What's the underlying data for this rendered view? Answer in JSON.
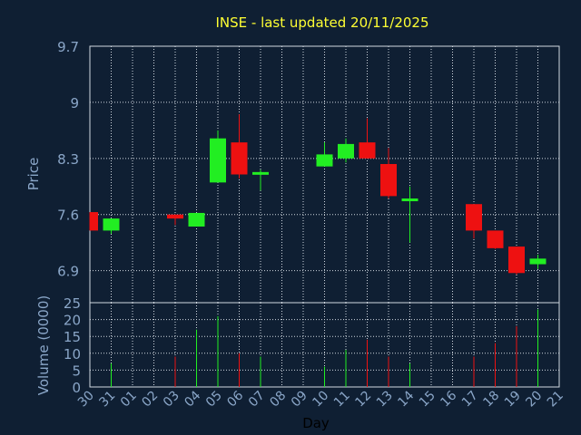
{
  "chart_data": {
    "type": "candlestick",
    "title": "INSE - last updated 20/11/2025",
    "xlabel": "Day",
    "days": [
      "30",
      "31",
      "01",
      "02",
      "03",
      "04",
      "05",
      "06",
      "07",
      "08",
      "09",
      "10",
      "11",
      "12",
      "13",
      "14",
      "15",
      "16",
      "17",
      "18",
      "19",
      "20",
      "21"
    ],
    "price_panel": {
      "ylabel": "Price",
      "ylim": [
        6.5,
        9.7
      ],
      "yticks": [
        "9.7",
        "9",
        "8.3",
        "7.6",
        "6.9"
      ],
      "ytick_values": [
        9.7,
        9.0,
        8.3,
        7.6,
        6.9
      ],
      "candles": [
        {
          "day": "30",
          "open": 7.63,
          "high": 7.63,
          "low": 7.4,
          "close": 7.4,
          "direction": "down"
        },
        {
          "day": "31",
          "open": 7.4,
          "high": 7.55,
          "low": 7.36,
          "close": 7.55,
          "direction": "up"
        },
        {
          "day": "03",
          "open": 7.6,
          "high": 7.6,
          "low": 7.47,
          "close": 7.55,
          "direction": "down"
        },
        {
          "day": "04",
          "open": 7.45,
          "high": 7.62,
          "low": 7.45,
          "close": 7.62,
          "direction": "up"
        },
        {
          "day": "05",
          "open": 8.0,
          "high": 8.65,
          "low": 8.0,
          "close": 8.55,
          "direction": "up"
        },
        {
          "day": "06",
          "open": 8.5,
          "high": 8.85,
          "low": 8.05,
          "close": 8.1,
          "direction": "down"
        },
        {
          "day": "07",
          "open": 8.1,
          "high": 8.16,
          "low": 7.9,
          "close": 8.13,
          "direction": "up"
        },
        {
          "day": "10",
          "open": 8.2,
          "high": 8.5,
          "low": 8.2,
          "close": 8.35,
          "direction": "up"
        },
        {
          "day": "11",
          "open": 8.3,
          "high": 8.55,
          "low": 8.25,
          "close": 8.48,
          "direction": "up"
        },
        {
          "day": "12",
          "open": 8.5,
          "high": 8.8,
          "low": 8.3,
          "close": 8.3,
          "direction": "down"
        },
        {
          "day": "13",
          "open": 8.23,
          "high": 8.43,
          "low": 7.8,
          "close": 7.83,
          "direction": "down"
        },
        {
          "day": "14",
          "open": 7.78,
          "high": 7.95,
          "low": 7.25,
          "close": 7.8,
          "direction": "up"
        },
        {
          "day": "17",
          "open": 7.73,
          "high": 7.73,
          "low": 7.3,
          "close": 7.4,
          "direction": "down"
        },
        {
          "day": "18",
          "open": 7.4,
          "high": 7.4,
          "low": 7.17,
          "close": 7.18,
          "direction": "down"
        },
        {
          "day": "19",
          "open": 7.2,
          "high": 7.2,
          "low": 6.85,
          "close": 6.87,
          "direction": "down"
        },
        {
          "day": "20",
          "open": 6.98,
          "high": 7.1,
          "low": 6.92,
          "close": 7.05,
          "direction": "up"
        }
      ]
    },
    "volume_panel": {
      "ylabel": "Volume (0000)",
      "ylim": [
        0,
        25
      ],
      "yticks": [
        "25",
        "20",
        "15",
        "10",
        "5",
        "0"
      ],
      "ytick_values": [
        25,
        20,
        15,
        10,
        5,
        0
      ],
      "bars": [
        {
          "day": "31",
          "value": 7,
          "direction": "up"
        },
        {
          "day": "03",
          "value": 9,
          "direction": "down"
        },
        {
          "day": "04",
          "value": 17,
          "direction": "up"
        },
        {
          "day": "05",
          "value": 21,
          "direction": "up"
        },
        {
          "day": "06",
          "value": 10,
          "direction": "down"
        },
        {
          "day": "07",
          "value": 9,
          "direction": "up"
        },
        {
          "day": "10",
          "value": 6,
          "direction": "up"
        },
        {
          "day": "11",
          "value": 11,
          "direction": "up"
        },
        {
          "day": "12",
          "value": 14,
          "direction": "down"
        },
        {
          "day": "13",
          "value": 9,
          "direction": "down"
        },
        {
          "day": "14",
          "value": 7,
          "direction": "up"
        },
        {
          "day": "17",
          "value": 9,
          "direction": "down"
        },
        {
          "day": "18",
          "value": 13,
          "direction": "down"
        },
        {
          "day": "19",
          "value": 18,
          "direction": "down"
        },
        {
          "day": "20",
          "value": 23,
          "direction": "up"
        }
      ]
    },
    "grid": true,
    "colors": {
      "background": "#0f1f33",
      "plot_background": "#0f1f33",
      "up": "#22ee22",
      "down": "#ee1111",
      "grid": "#d0d8e0",
      "axis_text": "#8aa6c8",
      "title": "#ffff33",
      "frame": "#d0d8e0"
    }
  }
}
